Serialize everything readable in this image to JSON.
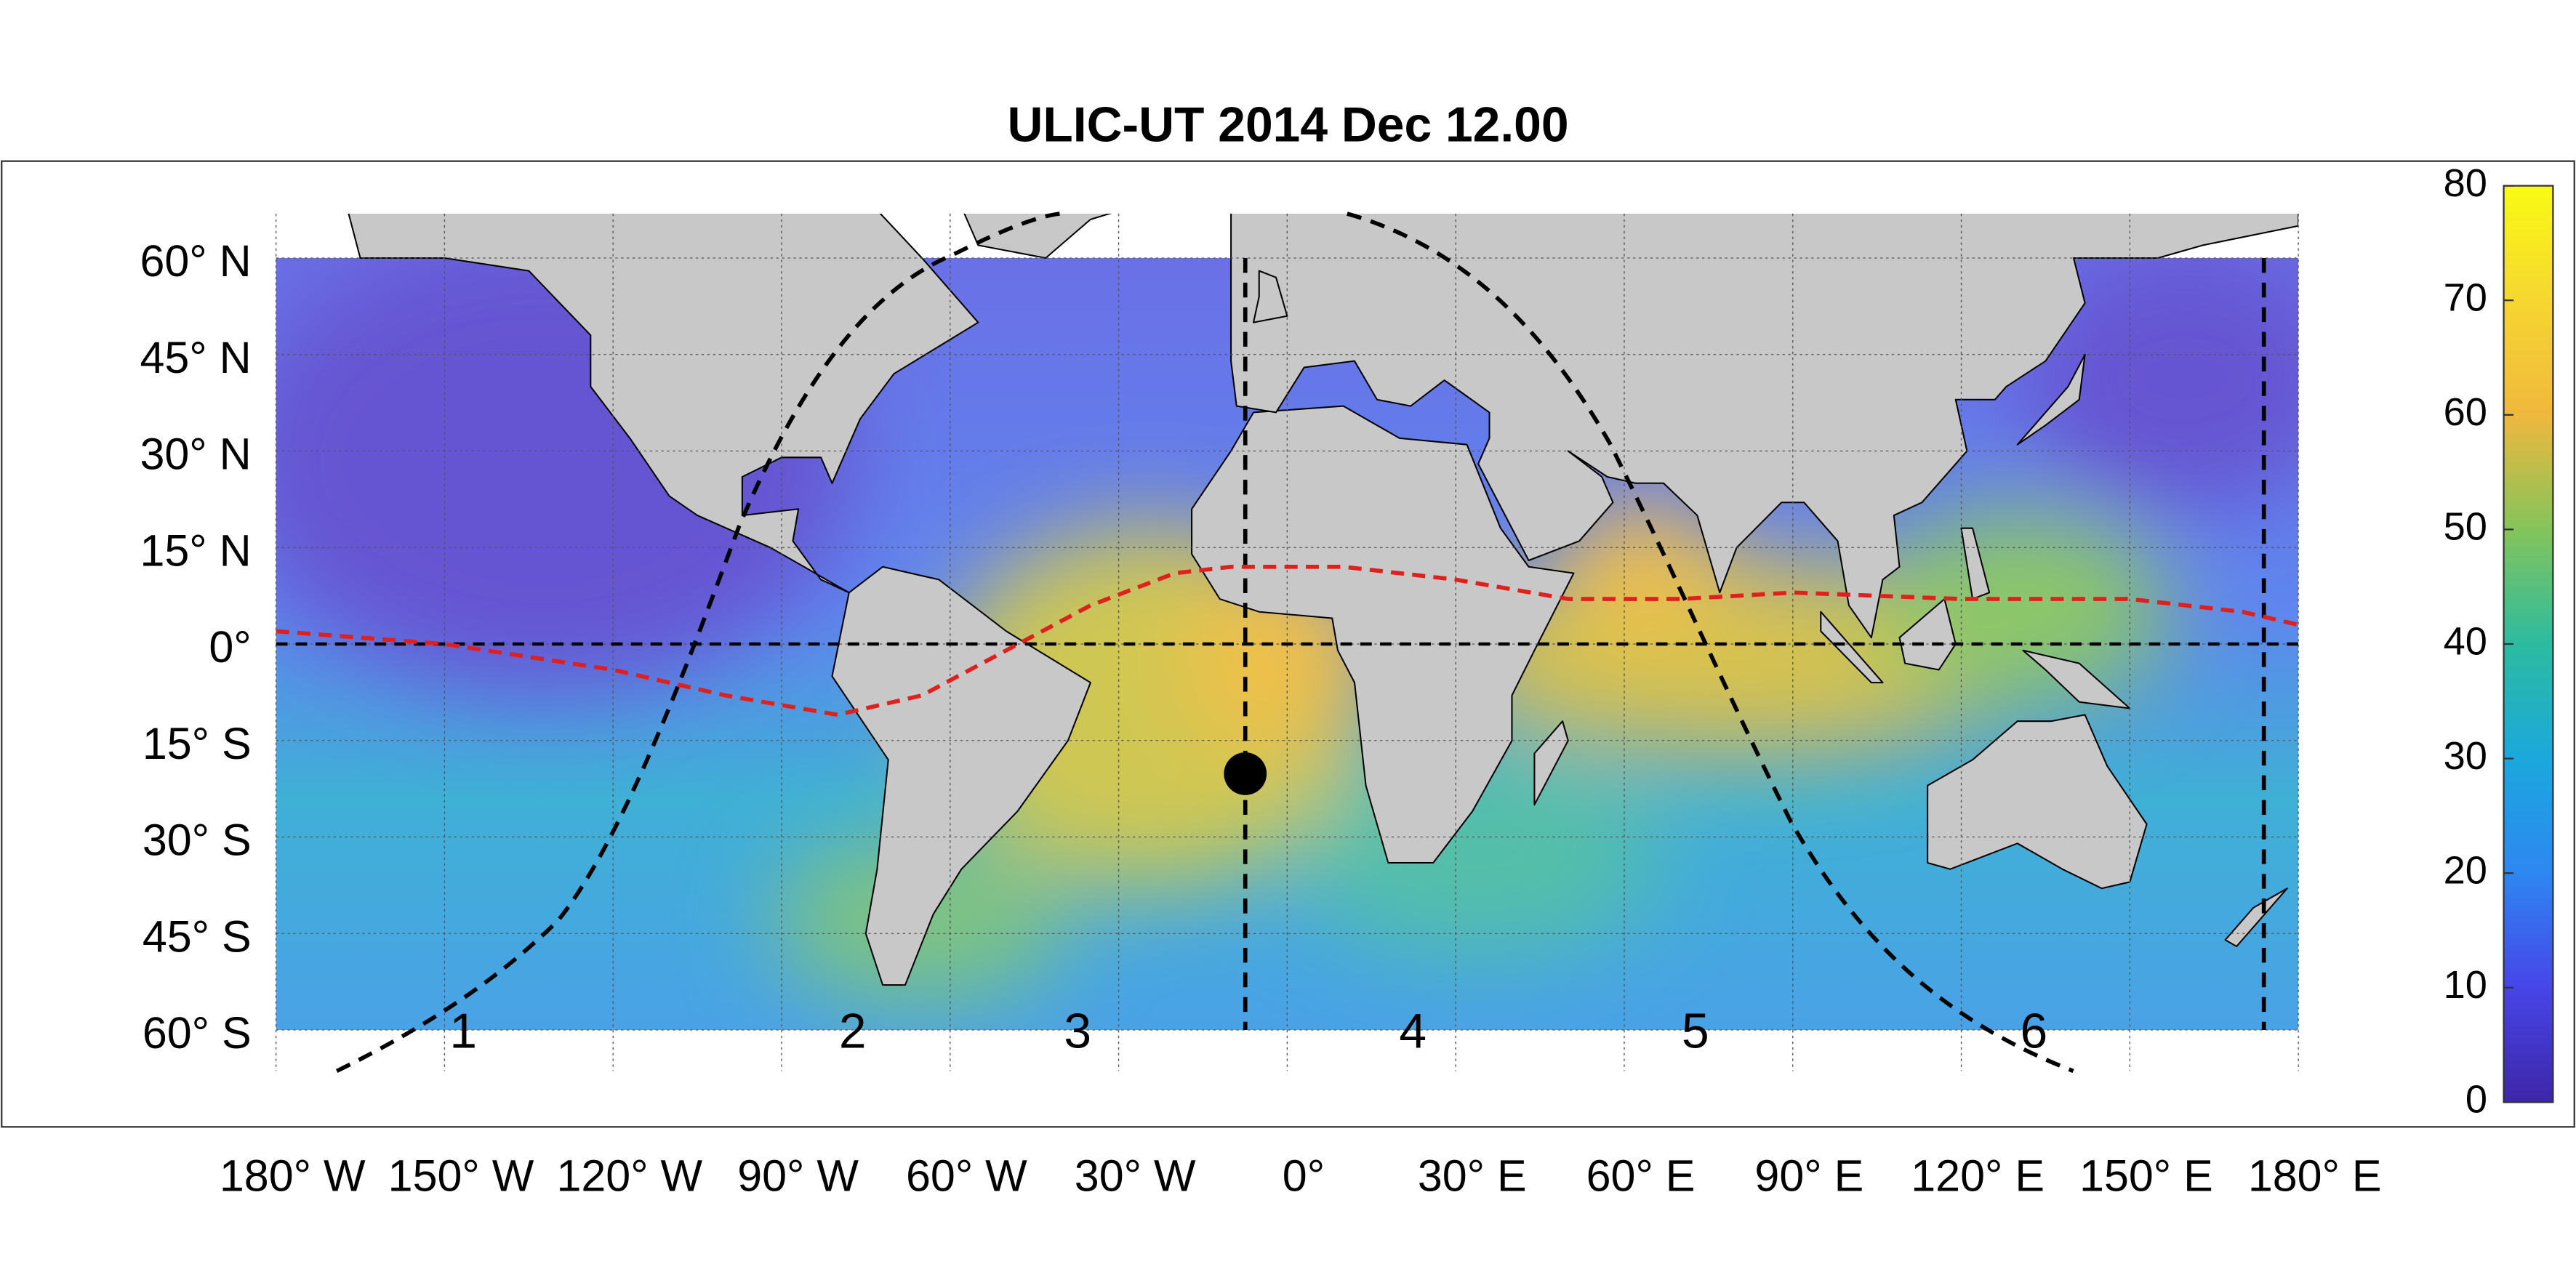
{
  "title": "ULIC-UT 2014 Dec 12.00",
  "lat_labels": [
    "60° N",
    "45° N",
    "30° N",
    "15° N",
    "0°",
    "15° S",
    "30° S",
    "45° S",
    "60° S"
  ],
  "lon_labels": [
    "180° W",
    "150° W",
    "120° W",
    "90° W",
    "60° W",
    "30° W",
    "0°",
    "30° E",
    "60° E",
    "90° E",
    "120° E",
    "150° E",
    "180° E"
  ],
  "zone_labels": [
    "1",
    "2",
    "3",
    "4",
    "5",
    "6"
  ],
  "colorbar": {
    "range": [
      0,
      80
    ],
    "ticks": [
      0,
      10,
      20,
      30,
      40,
      50,
      60,
      70,
      80
    ]
  }
}
